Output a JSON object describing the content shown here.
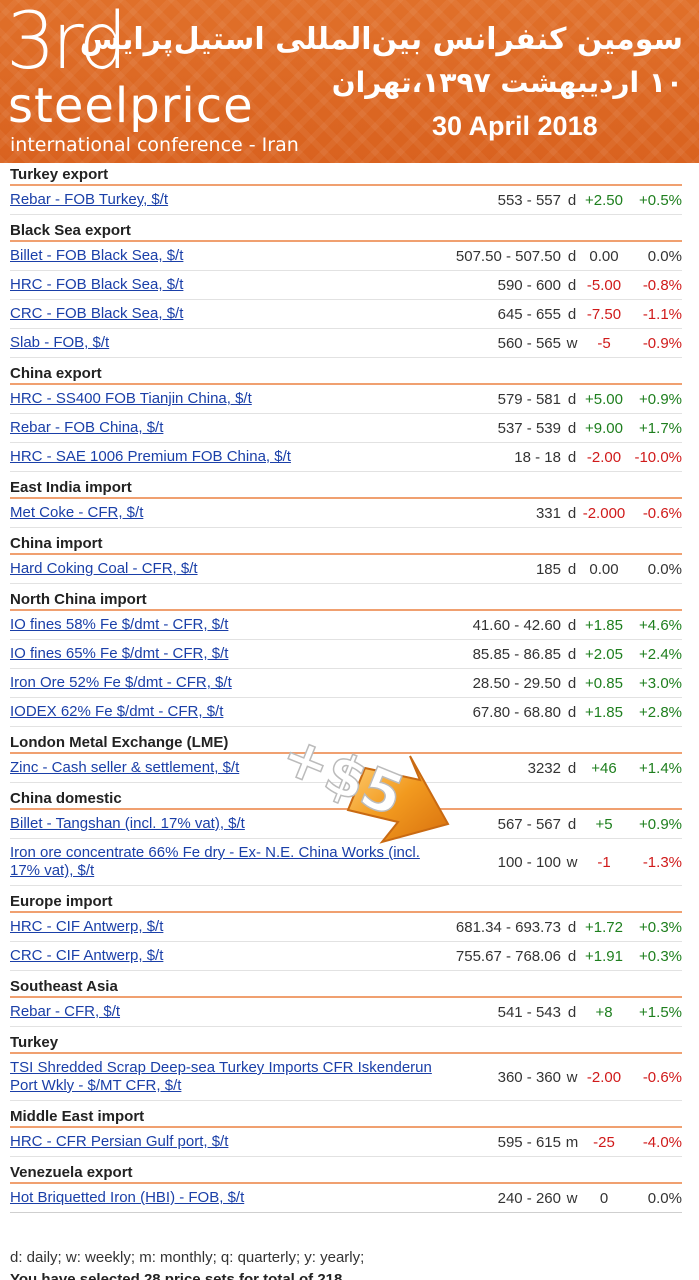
{
  "banner": {
    "logo_number": "3rd",
    "logo_word": "steelprice",
    "logo_subtitle": "international conference - Iran",
    "fa_title": "سومین کنفرانس بین‌المللی استیل‌پرایس",
    "fa_date": "۱۰ اردیبهشت ۱۳۹۷،تهران",
    "en_date": "30 April 2018"
  },
  "sections": [
    {
      "title": "Turkey export",
      "rows": [
        {
          "name": "Rebar - FOB Turkey, $/t",
          "range": "553 - 557",
          "freq": "d",
          "change": "+2.50",
          "pct": "+0.5%",
          "trend": "up"
        }
      ]
    },
    {
      "title": "Black Sea export",
      "rows": [
        {
          "name": "Billet - FOB Black Sea, $/t",
          "range": "507.50 - 507.50",
          "freq": "d",
          "change": "0.00",
          "pct": "0.0%",
          "trend": "flat"
        },
        {
          "name": "HRC - FOB Black Sea, $/t",
          "range": "590 - 600",
          "freq": "d",
          "change": "-5.00",
          "pct": "-0.8%",
          "trend": "down"
        },
        {
          "name": "CRC - FOB Black Sea, $/t",
          "range": "645 - 655",
          "freq": "d",
          "change": "-7.50",
          "pct": "-1.1%",
          "trend": "down"
        },
        {
          "name": "Slab - FOB, $/t",
          "range": "560 - 565",
          "freq": "w",
          "change": "-5",
          "pct": "-0.9%",
          "trend": "down"
        }
      ]
    },
    {
      "title": "China export",
      "rows": [
        {
          "name": "HRC - SS400 FOB Tianjin China, $/t",
          "range": "579 - 581",
          "freq": "d",
          "change": "+5.00",
          "pct": "+0.9%",
          "trend": "up"
        },
        {
          "name": "Rebar - FOB China, $/t",
          "range": "537 - 539",
          "freq": "d",
          "change": "+9.00",
          "pct": "+1.7%",
          "trend": "up"
        },
        {
          "name": "HRC - SAE 1006 Premium FOB China, $/t",
          "range": "18 - 18",
          "freq": "d",
          "change": "-2.00",
          "pct": "-10.0%",
          "trend": "down"
        }
      ]
    },
    {
      "title": "East India import",
      "rows": [
        {
          "name": "Met Coke - CFR, $/t",
          "range": "331",
          "freq": "d",
          "change": "-2.000",
          "pct": "-0.6%",
          "trend": "down"
        }
      ]
    },
    {
      "title": "China import",
      "rows": [
        {
          "name": "Hard Coking Coal - CFR, $/t",
          "range": "185",
          "freq": "d",
          "change": "0.00",
          "pct": "0.0%",
          "trend": "flat"
        }
      ]
    },
    {
      "title": "North China import",
      "rows": [
        {
          "name": "IO fines 58% Fe $/dmt - CFR, $/t",
          "range": "41.60 - 42.60",
          "freq": "d",
          "change": "+1.85",
          "pct": "+4.6%",
          "trend": "up"
        },
        {
          "name": "IO fines 65% Fe $/dmt - CFR, $/t",
          "range": "85.85 - 86.85",
          "freq": "d",
          "change": "+2.05",
          "pct": "+2.4%",
          "trend": "up"
        },
        {
          "name": "Iron Ore 52% Fe $/dmt - CFR, $/t",
          "range": "28.50 - 29.50",
          "freq": "d",
          "change": "+0.85",
          "pct": "+3.0%",
          "trend": "up"
        },
        {
          "name": "IODEX 62% Fe $/dmt - CFR, $/t",
          "range": "67.80 - 68.80",
          "freq": "d",
          "change": "+1.85",
          "pct": "+2.8%",
          "trend": "up"
        }
      ]
    },
    {
      "title": "London Metal Exchange (LME)",
      "rows": [
        {
          "name": "Zinc - Cash seller & settlement, $/t",
          "range": "3232",
          "freq": "d",
          "change": "+46",
          "pct": "+1.4%",
          "trend": "up"
        }
      ]
    },
    {
      "title": "China domestic",
      "rows": [
        {
          "name": "Billet - Tangshan (incl. 17% vat), $/t",
          "range": "567 - 567",
          "freq": "d",
          "change": "+5",
          "pct": "+0.9%",
          "trend": "up"
        },
        {
          "name": "Iron ore concentrate 66% Fe dry - Ex- N.E. China Works (incl. 17% vat), $/t",
          "range": "100 - 100",
          "freq": "w",
          "change": "-1",
          "pct": "-1.3%",
          "trend": "down",
          "tall": true
        }
      ]
    },
    {
      "title": "Europe import",
      "rows": [
        {
          "name": "HRC - CIF Antwerp, $/t",
          "range": "681.34 - 693.73",
          "freq": "d",
          "change": "+1.72",
          "pct": "+0.3%",
          "trend": "up"
        },
        {
          "name": "CRC - CIF Antwerp, $/t",
          "range": "755.67 - 768.06",
          "freq": "d",
          "change": "+1.91",
          "pct": "+0.3%",
          "trend": "up"
        }
      ]
    },
    {
      "title": "Southeast Asia",
      "rows": [
        {
          "name": "Rebar - CFR, $/t",
          "range": "541 - 543",
          "freq": "d",
          "change": "+8",
          "pct": "+1.5%",
          "trend": "up"
        }
      ]
    },
    {
      "title": "Turkey",
      "rows": [
        {
          "name": "TSI Shredded Scrap Deep-sea Turkey Imports CFR Iskenderun Port Wkly - $/MT CFR, $/t",
          "range": "360 - 360",
          "freq": "w",
          "change": "-2.00",
          "pct": "-0.6%",
          "trend": "down",
          "tall": true
        }
      ]
    },
    {
      "title": "Middle East import",
      "rows": [
        {
          "name": "HRC - CFR Persian Gulf port, $/t",
          "range": "595 - 615",
          "freq": "m",
          "change": "-25",
          "pct": "-4.0%",
          "trend": "down"
        }
      ]
    },
    {
      "title": "Venezuela export",
      "rows": [
        {
          "name": "Hot Briquetted Iron (HBI) - FOB, $/t",
          "range": "240 - 260",
          "freq": "w",
          "change": "0",
          "pct": "0.0%",
          "trend": "flat"
        }
      ]
    }
  ],
  "legend": "d: daily; w: weekly; m: monthly; q: quarterly; y: yearly;",
  "footer_partial": "You have selected 28 price sets for total of 218",
  "promo_badge": {
    "text": "+$5",
    "color": "#f29a1f"
  }
}
